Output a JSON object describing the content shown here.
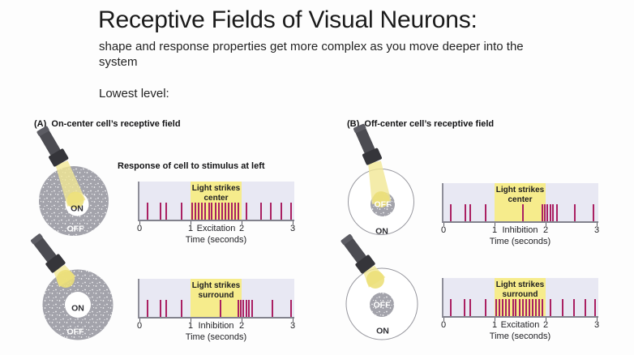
{
  "slide": {
    "title": "Receptive Fields of Visual Neurons:",
    "subtitle": "shape and response properties get more complex as you move deeper into the system",
    "level_label": "Lowest level:",
    "response_caption": "Response of cell to stimulus at left"
  },
  "sections": [
    {
      "id": "A",
      "heading": "(A)  On-center cell’s receptive field"
    },
    {
      "id": "B",
      "heading": "(B)  Off-center cell’s receptive field"
    }
  ],
  "diagrams": [
    {
      "id": "a-top",
      "cell_type": "on-center",
      "beam_target": "center",
      "center_label": "ON",
      "surround_label": "OFF"
    },
    {
      "id": "a-bottom",
      "cell_type": "on-center",
      "beam_target": "surround",
      "center_label": "ON",
      "surround_label": "OFF"
    },
    {
      "id": "b-top",
      "cell_type": "off-center",
      "beam_target": "center",
      "center_label": "OFF",
      "surround_label": "ON"
    },
    {
      "id": "b-bottom",
      "cell_type": "off-center",
      "beam_target": "surround",
      "center_label": "OFF",
      "surround_label": "ON"
    }
  ],
  "chart_data": [
    {
      "id": "a-top",
      "type": "spike-train",
      "title": "Light strikes center",
      "highlight_interval": [
        1,
        2
      ],
      "axis_annotation": "Excitation",
      "xlabel": "Time (seconds)",
      "xticks": [
        0,
        1,
        2,
        3
      ],
      "xlim": [
        0,
        3
      ],
      "grid": false,
      "spike_times": [
        0.16,
        0.42,
        0.52,
        0.83,
        1.03,
        1.1,
        1.16,
        1.23,
        1.29,
        1.36,
        1.42,
        1.49,
        1.55,
        1.62,
        1.68,
        1.75,
        1.81,
        1.88,
        1.94,
        2.1,
        2.38,
        2.57,
        2.78,
        2.97
      ]
    },
    {
      "id": "a-bottom",
      "type": "spike-train",
      "title": "Light strikes surround",
      "highlight_interval": [
        1,
        2
      ],
      "axis_annotation": "Inhibition",
      "xlabel": "Time (seconds)",
      "xticks": [
        0,
        1,
        2,
        3
      ],
      "xlim": [
        0,
        3
      ],
      "grid": false,
      "spike_times": [
        0.16,
        0.42,
        0.52,
        0.83,
        1.58,
        1.93,
        1.98,
        2.03,
        2.09,
        2.14,
        2.21,
        2.61,
        2.97
      ]
    },
    {
      "id": "b-top",
      "type": "spike-train",
      "title": "Light strikes center",
      "highlight_interval": [
        1,
        2
      ],
      "axis_annotation": "Inhibition",
      "xlabel": "Time (seconds)",
      "xticks": [
        0,
        1,
        2,
        3
      ],
      "xlim": [
        0,
        3
      ],
      "grid": false,
      "spike_times": [
        0.15,
        0.43,
        0.52,
        0.82,
        1.55,
        1.93,
        1.98,
        2.03,
        2.09,
        2.15,
        2.22,
        2.57,
        2.93
      ]
    },
    {
      "id": "b-bottom",
      "type": "spike-train",
      "title": "Light strikes surround",
      "highlight_interval": [
        1,
        2
      ],
      "axis_annotation": "Excitation",
      "xlabel": "Time (seconds)",
      "xticks": [
        0,
        1,
        2,
        3
      ],
      "xlim": [
        0,
        3
      ],
      "grid": false,
      "spike_times": [
        0.15,
        0.42,
        0.52,
        0.83,
        1.03,
        1.1,
        1.16,
        1.23,
        1.29,
        1.36,
        1.42,
        1.49,
        1.55,
        1.62,
        1.68,
        1.75,
        1.81,
        1.88,
        1.94,
        2.1,
        2.34,
        2.55,
        2.78,
        2.97
      ]
    }
  ],
  "colors": {
    "plot_bg": "#e8e8f3",
    "highlight": "#f6ec8c",
    "spike": "#aa2062",
    "axis": "#8e8e99",
    "surround_gray": "#a3a3ab",
    "outline_gray": "#97979e",
    "beam": "#f1e795",
    "beam_spot": "#ecdf78",
    "flashlight_body": "#4c4c52",
    "flashlight_head": "#35353a",
    "label_dark": "#2e2e33",
    "label_light": "#ffffff"
  }
}
